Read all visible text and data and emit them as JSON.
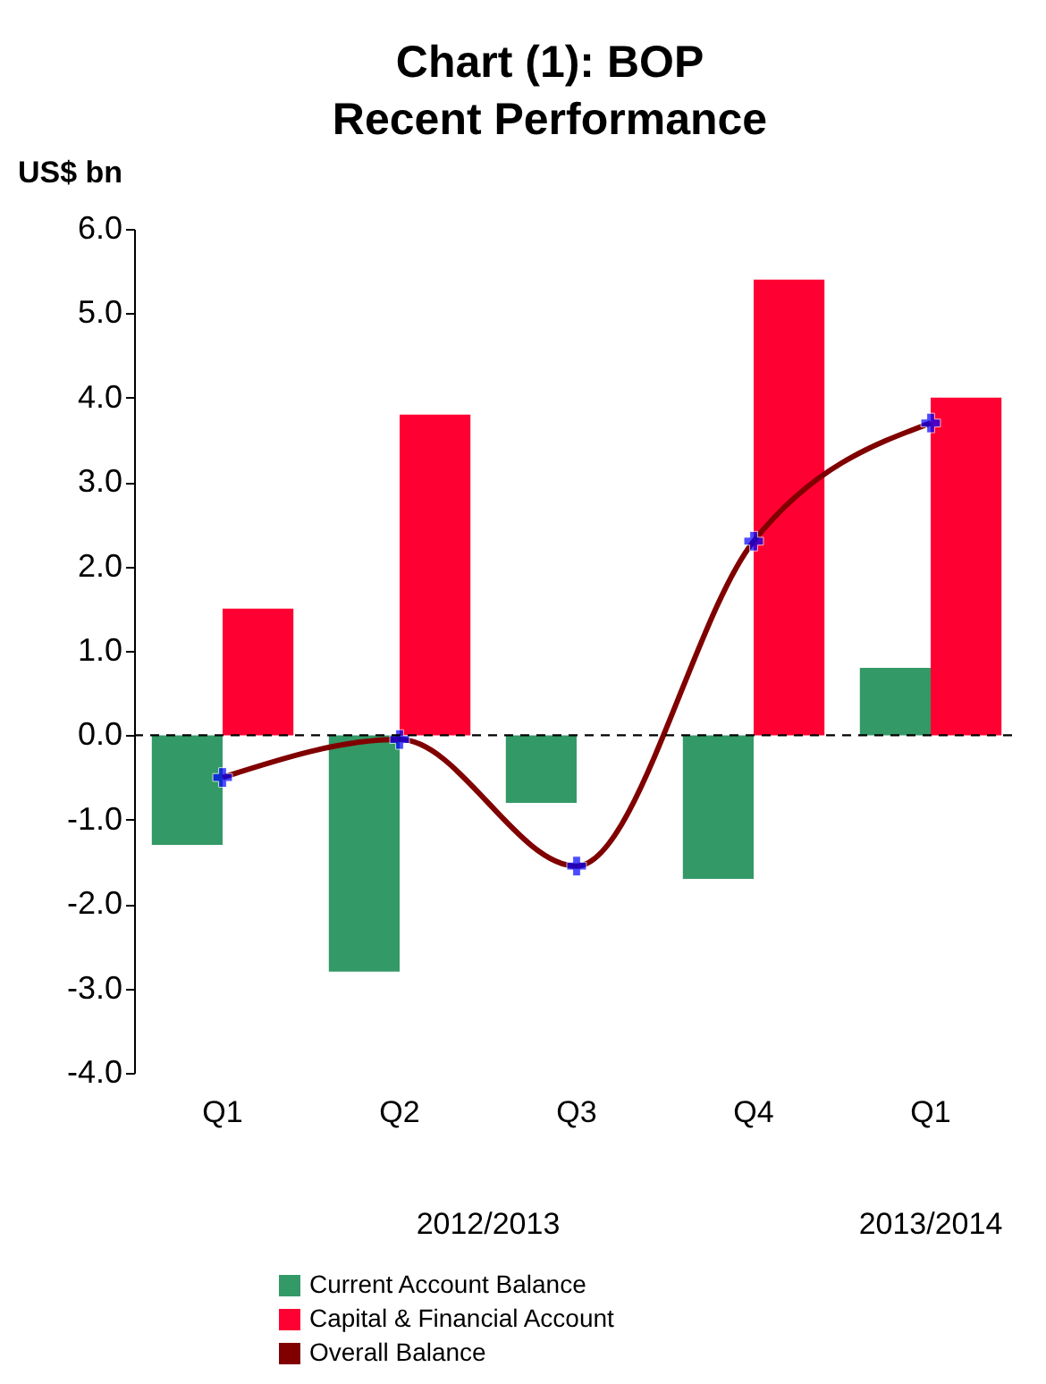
{
  "chart_data": {
    "type": "bar",
    "title": "Chart (1): BOP\nRecent Performance",
    "ylabel": "US$ bn",
    "categories": [
      "Q1",
      "Q2",
      "Q3",
      "Q4",
      "Q1"
    ],
    "annotations": [
      "2012/2013",
      "2013/2014"
    ],
    "series": [
      {
        "name": "Current Account Balance",
        "color": "#339966",
        "values": [
          -1.3,
          -2.8,
          -0.8,
          -1.7,
          0.8
        ]
      },
      {
        "name": "Capital & Financial Account",
        "color": "#ff0033",
        "values": [
          1.5,
          3.8,
          null,
          5.4,
          4.0
        ]
      },
      {
        "name": "Overall Balance",
        "type": "line",
        "color": "#800000",
        "marker": "cross",
        "values": [
          -0.5,
          -0.05,
          -1.55,
          2.3,
          3.7
        ]
      }
    ],
    "ylim": [
      -4,
      6
    ],
    "yticks": [
      {
        "value": -4,
        "label": "-4.0"
      },
      {
        "value": -3,
        "label": "-3.0"
      },
      {
        "value": -2,
        "label": "-2.0"
      },
      {
        "value": -1,
        "label": "-1.0"
      },
      {
        "value": 0,
        "label": "0.0"
      },
      {
        "value": 1,
        "label": "1.0"
      },
      {
        "value": 2,
        "label": "2.0"
      },
      {
        "value": 3,
        "label": "3.0"
      },
      {
        "value": 4,
        "label": "4.0"
      },
      {
        "value": 5,
        "label": "5.0"
      },
      {
        "value": 6,
        "label": "6.0"
      }
    ],
    "ref_lines": [
      {
        "axis": "y",
        "value": 0,
        "line_style": "dashed",
        "color": "#000000"
      }
    ],
    "legend": "bottom"
  }
}
